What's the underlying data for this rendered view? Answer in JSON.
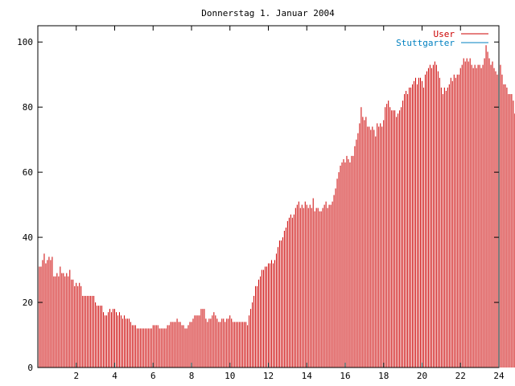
{
  "chart_data": {
    "type": "bar",
    "title": "Donnerstag 1. Januar 2004",
    "xlabel": "",
    "ylabel": "",
    "xlim": [
      0,
      24
    ],
    "ylim": [
      0,
      105
    ],
    "x_ticks": [
      2,
      4,
      6,
      8,
      10,
      12,
      14,
      16,
      18,
      20,
      22,
      24
    ],
    "y_ticks": [
      0,
      20,
      40,
      60,
      80,
      100
    ],
    "grid": false,
    "legend_position": "top-right",
    "bin_hours": 0.08333,
    "series": [
      {
        "name": "User",
        "color": "#cc0000",
        "values": [
          31,
          31,
          31,
          33,
          35,
          32,
          33,
          34,
          33,
          34,
          28,
          28,
          29,
          28,
          31,
          29,
          29,
          28,
          29,
          28,
          30,
          27,
          27,
          25,
          26,
          25,
          26,
          25,
          22,
          22,
          22,
          22,
          22,
          22,
          22,
          22,
          20,
          19,
          19,
          19,
          19,
          17,
          16,
          16,
          17,
          18,
          17,
          18,
          18,
          17,
          16,
          17,
          16,
          15,
          16,
          15,
          15,
          15,
          14,
          13,
          13,
          13,
          12,
          12,
          12,
          12,
          12,
          12,
          12,
          12,
          12,
          12,
          13,
          13,
          13,
          13,
          12,
          12,
          12,
          12,
          12,
          13,
          13,
          14,
          14,
          14,
          14,
          15,
          14,
          14,
          13,
          13,
          12,
          12,
          13,
          14,
          14,
          15,
          16,
          16,
          16,
          16,
          18,
          18,
          18,
          15,
          14,
          15,
          15,
          16,
          17,
          16,
          15,
          14,
          14,
          15,
          15,
          14,
          15,
          15,
          16,
          15,
          14,
          14,
          14,
          14,
          14,
          14,
          14,
          14,
          14,
          13,
          16,
          18,
          20,
          22,
          25,
          25,
          27,
          28,
          30,
          30,
          31,
          31,
          32,
          32,
          33,
          32,
          33,
          35,
          37,
          39,
          39,
          40,
          42,
          43,
          45,
          46,
          47,
          46,
          47,
          49,
          50,
          51,
          49,
          50,
          49,
          51,
          50,
          49,
          50,
          49,
          52,
          48,
          49,
          49,
          48,
          48,
          49,
          50,
          51,
          49,
          50,
          50,
          51,
          53,
          55,
          58,
          60,
          62,
          63,
          64,
          63,
          65,
          64,
          63,
          65,
          65,
          68,
          70,
          72,
          75,
          80,
          77,
          76,
          77,
          74,
          74,
          73,
          74,
          73,
          71,
          75,
          74,
          75,
          74,
          76,
          80,
          81,
          82,
          80,
          79,
          79,
          79,
          77,
          78,
          79,
          80,
          82,
          84,
          85,
          84,
          86,
          86,
          87,
          88,
          89,
          87,
          89,
          89,
          88,
          86,
          90,
          91,
          92,
          93,
          92,
          93,
          94,
          93,
          91,
          89,
          86,
          84,
          86,
          85,
          86,
          87,
          89,
          88,
          90,
          89,
          90,
          90,
          92,
          93,
          95,
          94,
          95,
          94,
          95,
          93,
          92,
          93,
          92,
          93,
          93,
          92,
          93,
          95,
          99,
          97,
          95,
          93,
          94,
          92,
          91,
          90,
          91,
          93,
          90,
          87,
          87,
          86,
          84,
          84,
          84,
          82,
          78
        ]
      },
      {
        "name": "Stuttgarter",
        "color": "#0080c0",
        "values": []
      }
    ]
  }
}
